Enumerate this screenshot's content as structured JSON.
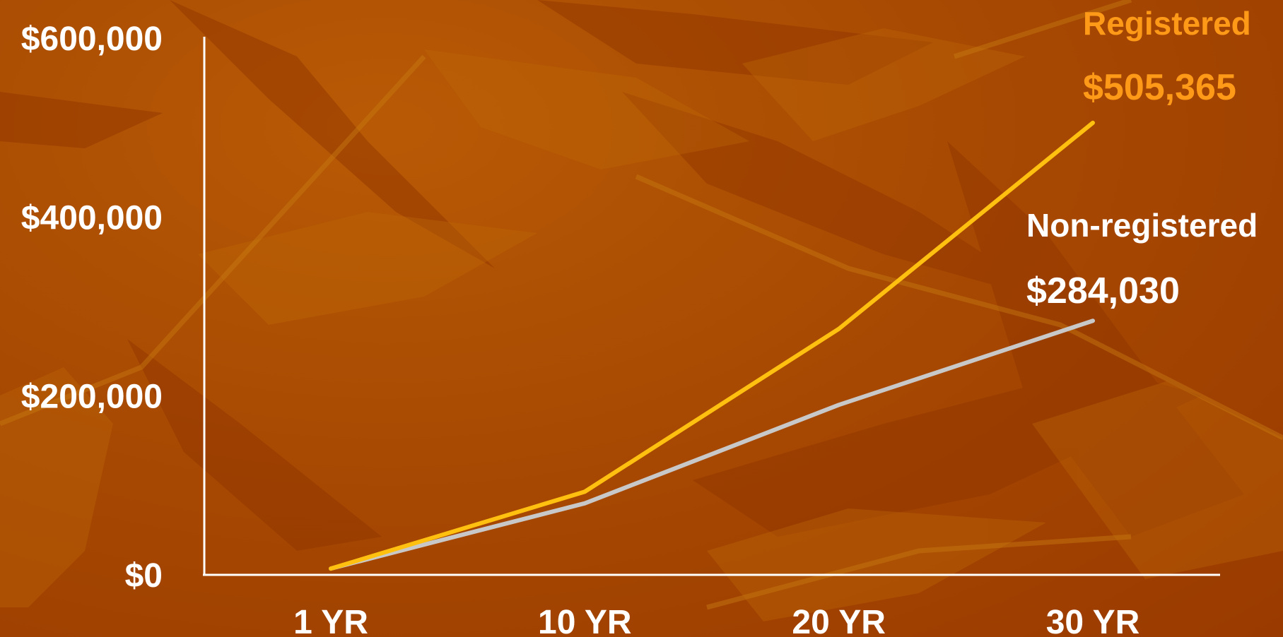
{
  "chart_data": {
    "type": "line",
    "categories": [
      "1 YR",
      "10 YR",
      "20 YR",
      "30 YR"
    ],
    "series": [
      {
        "name": "Registered",
        "values": [
          7000,
          93000,
          275000,
          505365
        ],
        "color": "#ffc010",
        "annotation": "$505,365"
      },
      {
        "name": "Non-registered",
        "values": [
          7000,
          80000,
          190000,
          284030
        ],
        "color": "#c8c8c8",
        "annotation": "$284,030"
      }
    ],
    "y_ticks": [
      "$0",
      "$200,000",
      "$400,000",
      "$600,000"
    ],
    "y_tick_values": [
      0,
      200000,
      400000,
      600000
    ],
    "ylim": [
      0,
      600000
    ],
    "grid": false,
    "colors": {
      "axis": "#ffffff",
      "tick_text": "#ffffff",
      "registered_label": "#ff9a18",
      "non_registered_label": "#ffffff"
    }
  }
}
